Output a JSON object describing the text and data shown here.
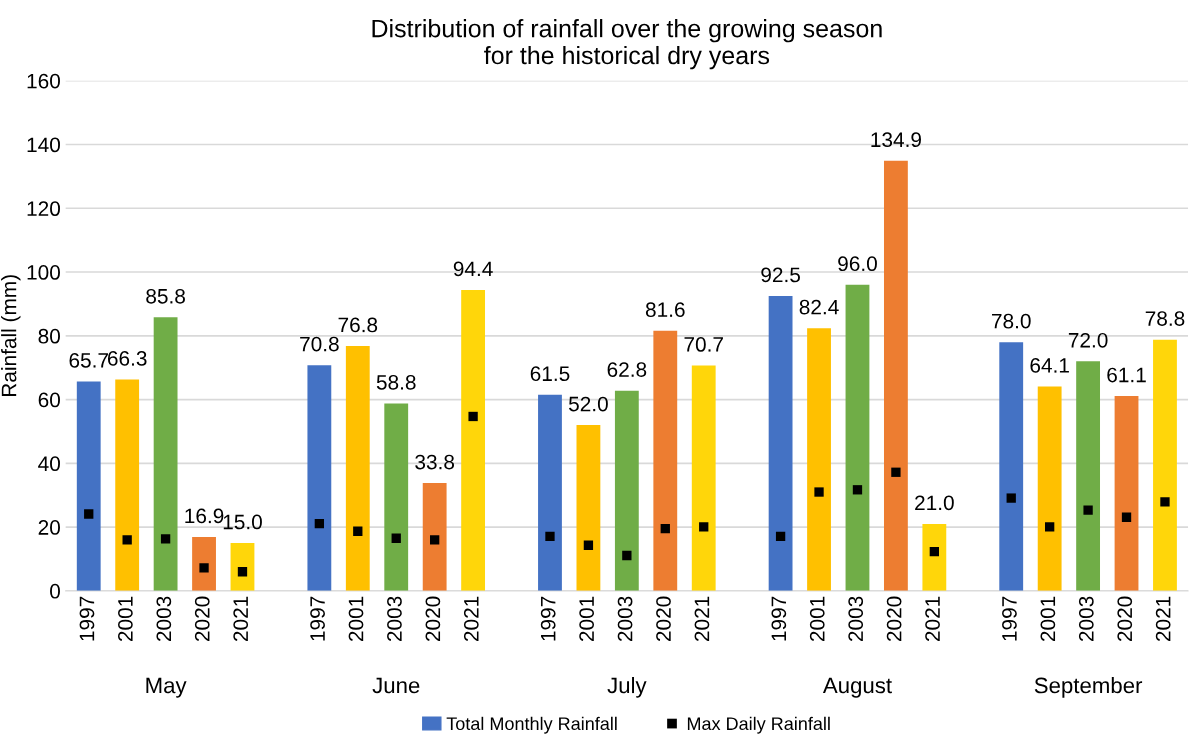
{
  "chart_data": {
    "type": "bar",
    "title": "Distribution of rainfall over the growing season\nfor the historical dry years",
    "ylabel": "Rainfall (mm)",
    "categories": [
      "1997",
      "2001",
      "2003",
      "2020",
      "2021",
      null,
      "1997",
      "2001",
      "2003",
      "2020",
      "2021",
      null,
      "1997",
      "2001",
      "2003",
      "2020",
      "2021",
      null,
      "1997",
      "2001",
      "2003",
      "2020",
      "2021",
      null,
      "1997",
      "2001",
      "2003",
      "2020",
      "2021"
    ],
    "annotations": [
      "May",
      "June",
      "July",
      "August",
      "September"
    ],
    "series": [
      {
        "name": "Total Monthly Rainfall",
        "color": "#4472c4",
        "value_labels": [
          "65.7",
          "66.3",
          "85.8",
          "16.9",
          "15.0",
          null,
          "70.8",
          "76.8",
          "58.8",
          "33.8",
          "94.4",
          null,
          "61.5",
          "52.0",
          "62.8",
          "81.6",
          "70.7",
          null,
          "92.5",
          "82.4",
          "96.0",
          "134.9",
          "21.0",
          null,
          "78.0",
          "64.1",
          "72.0",
          "61.1",
          "78.8"
        ],
        "colors": [
          "#4472c4",
          "#ffc000",
          "#70ad47",
          "#ed7d31",
          "#ffd60a",
          null,
          "#4472c4",
          "#ffc000",
          "#70ad47",
          "#ed7d31",
          "#ffd60a",
          null,
          "#4472c4",
          "#ffc000",
          "#70ad47",
          "#ed7d31",
          "#ffd60a",
          null,
          "#4472c4",
          "#ffc000",
          "#70ad47",
          "#ed7d31",
          "#ffd60a",
          null,
          "#4472c4",
          "#ffc000",
          "#70ad47",
          "#ed7d31",
          "#ffd60a"
        ],
        "values": [
          65.7,
          66.3,
          85.8,
          16.9,
          15.0,
          null,
          70.8,
          76.8,
          58.8,
          33.8,
          94.4,
          null,
          61.5,
          52.0,
          62.8,
          81.6,
          70.7,
          null,
          92.5,
          82.4,
          96.0,
          134.9,
          21.0,
          null,
          78.0,
          64.1,
          72.0,
          61.1,
          78.8
        ]
      },
      {
        "name": "Max Daily Rainfall",
        "type": "scatter",
        "marker": "square",
        "color": "#000000",
        "values": [
          24.1,
          16.0,
          16.3,
          7.2,
          6.0,
          null,
          21.1,
          18.7,
          16.5,
          16.0,
          54.7,
          null,
          17.1,
          14.3,
          11.1,
          19.5,
          20.1,
          null,
          17.1,
          31.0,
          31.7,
          37.2,
          12.3,
          null,
          29.1,
          20.1,
          25.3,
          23.1,
          27.9
        ]
      }
    ],
    "ylim": [
      0,
      160
    ],
    "yticks": [
      0,
      20,
      40,
      60,
      80,
      100,
      120,
      140,
      160
    ],
    "grid": "y",
    "legend": "bottom"
  }
}
